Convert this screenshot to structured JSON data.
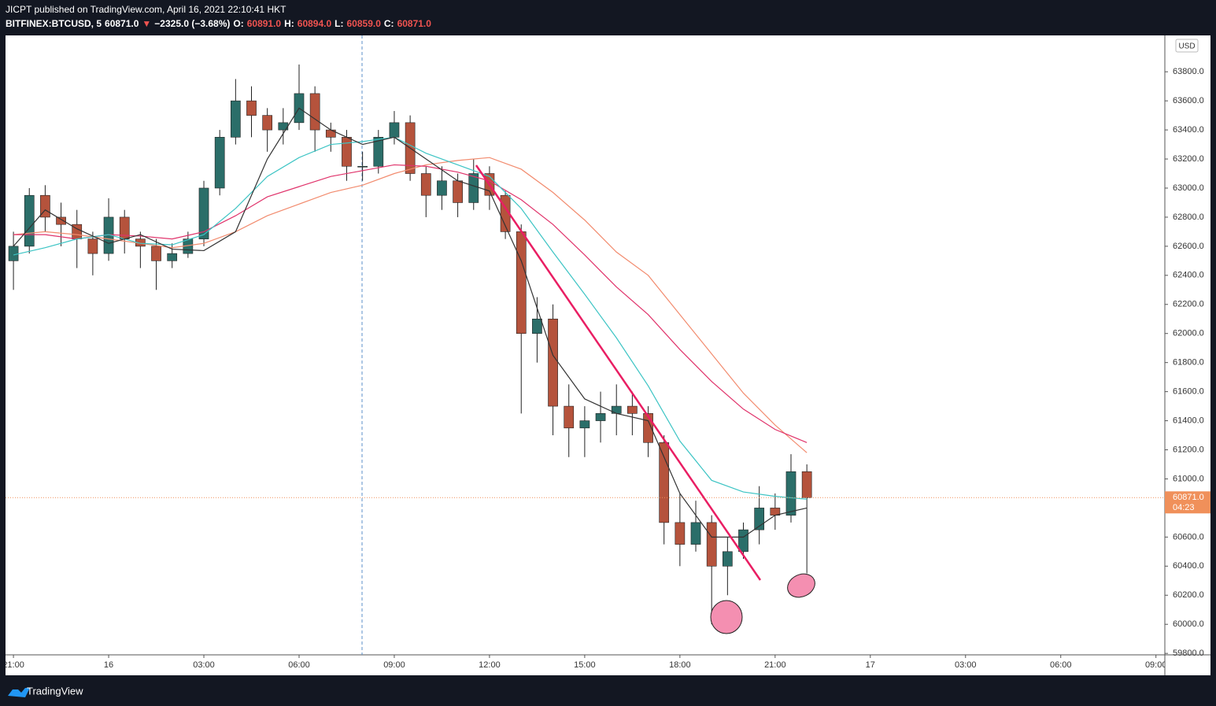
{
  "header": {
    "line1": "JICPT published on TradingView.com, April 16, 2021 22:10:41 HKT",
    "line2": [
      {
        "text": "BITFINEX:BTCUSD, 5",
        "color": "#ffffff"
      },
      {
        "text": "60871.0",
        "color": "#ffffff"
      },
      {
        "text": "▼",
        "color": "#ef5350"
      },
      {
        "text": "−2325.0 (−3.68%)",
        "color": "#ffffff"
      },
      {
        "text": "O:",
        "color": "#ffffff"
      },
      {
        "text": "60891.0",
        "color": "#ef5350"
      },
      {
        "text": "H:",
        "color": "#ffffff"
      },
      {
        "text": "60894.0",
        "color": "#ef5350"
      },
      {
        "text": "L:",
        "color": "#ffffff"
      },
      {
        "text": "60859.0",
        "color": "#ef5350"
      },
      {
        "text": "C:",
        "color": "#ffffff"
      },
      {
        "text": "60871.0",
        "color": "#ef5350"
      }
    ]
  },
  "chart_data": {
    "type": "candlestick",
    "currency": "USD",
    "x": [
      0,
      0.5,
      1,
      1.5,
      2,
      2.5,
      3,
      3.5,
      4,
      4.5,
      5,
      5.5,
      6,
      6.5,
      7,
      7.5,
      8,
      8.5,
      9,
      9.5,
      10,
      10.5,
      11,
      11.5,
      12,
      12.5,
      13,
      13.5,
      14,
      14.5,
      15,
      15.5,
      16,
      16.5,
      17,
      17.5,
      18,
      18.5,
      19,
      19.5,
      20,
      20.5,
      21,
      21.5,
      22,
      22.5,
      23,
      23.5,
      24,
      24.5,
      25
    ],
    "open": [
      62500,
      62600,
      62950,
      62800,
      62750,
      62650,
      62550,
      62800,
      62650,
      62600,
      62500,
      62550,
      62650,
      63000,
      63350,
      63600,
      63500,
      63400,
      63450,
      63650,
      63400,
      63350,
      63150,
      63150,
      63350,
      63450,
      63100,
      62950,
      63050,
      62900,
      63100,
      62950,
      62700,
      62000,
      62100,
      61500,
      61350,
      61400,
      61450,
      61500,
      61450,
      61250,
      60700,
      60550,
      60700,
      60400,
      60500,
      60650,
      60800,
      60750,
      61050
    ],
    "high": [
      62700,
      63000,
      63020,
      62900,
      62850,
      62700,
      62930,
      62850,
      62700,
      62650,
      62620,
      62700,
      63050,
      63400,
      63750,
      63700,
      63550,
      63550,
      63850,
      63700,
      63450,
      63400,
      63250,
      63400,
      63530,
      63500,
      63150,
      63150,
      63100,
      63200,
      63150,
      62980,
      62750,
      62250,
      62200,
      61650,
      61500,
      61600,
      61650,
      61600,
      61500,
      61300,
      60900,
      60850,
      60750,
      60600,
      60700,
      60950,
      60900,
      61170,
      61100
    ],
    "low": [
      62300,
      62550,
      62700,
      62600,
      62450,
      62400,
      62500,
      62550,
      62450,
      62300,
      62450,
      62520,
      62600,
      62950,
      63300,
      63350,
      63250,
      63300,
      63400,
      63250,
      63250,
      63050,
      63050,
      63100,
      63300,
      63050,
      62800,
      62850,
      62800,
      62850,
      62850,
      62650,
      61450,
      61800,
      61300,
      61150,
      61150,
      61250,
      61300,
      61300,
      61150,
      60550,
      60400,
      60500,
      60000,
      60200,
      60450,
      60550,
      60650,
      60700,
      60350
    ],
    "close": [
      62600,
      62950,
      62800,
      62750,
      62650,
      62550,
      62800,
      62650,
      62600,
      62500,
      62550,
      62650,
      63000,
      63350,
      63600,
      63500,
      63400,
      63450,
      63650,
      63400,
      63350,
      63150,
      63150,
      63350,
      63450,
      63100,
      62950,
      63050,
      62900,
      63100,
      62950,
      62700,
      62000,
      62100,
      61500,
      61350,
      61400,
      61450,
      61500,
      61450,
      61250,
      60700,
      60550,
      60700,
      60400,
      60500,
      60650,
      60800,
      60750,
      61050,
      60871
    ],
    "up_color": "#2b6e69",
    "down_color": "#b5533c",
    "line_x": [
      0,
      1,
      2,
      3,
      4,
      5,
      6,
      7,
      8,
      9,
      10,
      11,
      12,
      13,
      14,
      15,
      16,
      17,
      18,
      19,
      20,
      21,
      22,
      23,
      24,
      25
    ],
    "lines": [
      {
        "color": "#f28b6e",
        "values": [
          62680,
          62700,
          62680,
          62650,
          62620,
          62590,
          62620,
          62700,
          62810,
          62890,
          62970,
          63020,
          63100,
          63160,
          63190,
          63210,
          63130,
          62970,
          62780,
          62560,
          62400,
          62130,
          61860,
          61590,
          61370,
          61180
        ]
      },
      {
        "color": "#e0336b",
        "values": [
          62680,
          62680,
          62650,
          62680,
          62670,
          62650,
          62700,
          62810,
          62940,
          63010,
          63080,
          63120,
          63160,
          63150,
          63110,
          63050,
          62920,
          62750,
          62540,
          62320,
          62130,
          61890,
          61670,
          61480,
          61340,
          61250
        ]
      },
      {
        "color": "#3cc4c4",
        "values": [
          62540,
          62590,
          62650,
          62680,
          62620,
          62610,
          62680,
          62860,
          63080,
          63210,
          63300,
          63320,
          63350,
          63240,
          63160,
          63080,
          62860,
          62560,
          62270,
          61970,
          61640,
          61260,
          60990,
          60910,
          60880,
          60860
        ]
      },
      {
        "color": "#333333",
        "values": [
          62600,
          62850,
          62720,
          62620,
          62680,
          62580,
          62570,
          62700,
          63200,
          63550,
          63400,
          63300,
          63350,
          63200,
          63050,
          62980,
          62500,
          61850,
          61550,
          61450,
          61400,
          60900,
          60600,
          60600,
          60750,
          60800
        ]
      }
    ],
    "xlim": [
      -0.25,
      36.28
    ],
    "xticks": [
      {
        "value": 0,
        "label": "21:00"
      },
      {
        "value": 3,
        "label": "16"
      },
      {
        "value": 6,
        "label": "03:00"
      },
      {
        "value": 9,
        "label": "06:00"
      },
      {
        "value": 12,
        "label": "09:00"
      },
      {
        "value": 15,
        "label": "12:00"
      },
      {
        "value": 18,
        "label": "15:00"
      },
      {
        "value": 21,
        "label": "18:00"
      },
      {
        "value": 24,
        "label": "21:00"
      },
      {
        "value": 27,
        "label": "17"
      },
      {
        "value": 30,
        "label": "03:00"
      },
      {
        "value": 33,
        "label": "06:00"
      },
      {
        "value": 36,
        "label": "09:00"
      }
    ],
    "ylim": [
      59790,
      64050
    ],
    "yticks": [
      {
        "value": 59800,
        "label": "59800.0"
      },
      {
        "value": 60000,
        "label": "60000.0"
      },
      {
        "value": 60200,
        "label": "60200.0"
      },
      {
        "value": 60400,
        "label": "60400.0"
      },
      {
        "value": 60600,
        "label": "60600.0"
      },
      {
        "value": 60800,
        "label": "60800.0"
      },
      {
        "value": 61000,
        "label": "61000.0"
      },
      {
        "value": 61200,
        "label": "61200.0"
      },
      {
        "value": 61400,
        "label": "61400.0"
      },
      {
        "value": 61600,
        "label": "61600.0"
      },
      {
        "value": 61800,
        "label": "61800.0"
      },
      {
        "value": 62000,
        "label": "62000.0"
      },
      {
        "value": 62200,
        "label": "62200.0"
      },
      {
        "value": 62400,
        "label": "62400.0"
      },
      {
        "value": 62600,
        "label": "62600.0"
      },
      {
        "value": 62800,
        "label": "62800.0"
      },
      {
        "value": 63000,
        "label": "63000.0"
      },
      {
        "value": 63200,
        "label": "63200.0"
      },
      {
        "value": 63400,
        "label": "63400.0"
      },
      {
        "value": 63600,
        "label": "63600.0"
      },
      {
        "value": 63800,
        "label": "63800.0"
      }
    ],
    "last_price": {
      "value": 60871,
      "label": "60871.0",
      "countdown": "04:23",
      "color": "#f0905a"
    }
  },
  "footer": {
    "brand": "TradingView"
  }
}
